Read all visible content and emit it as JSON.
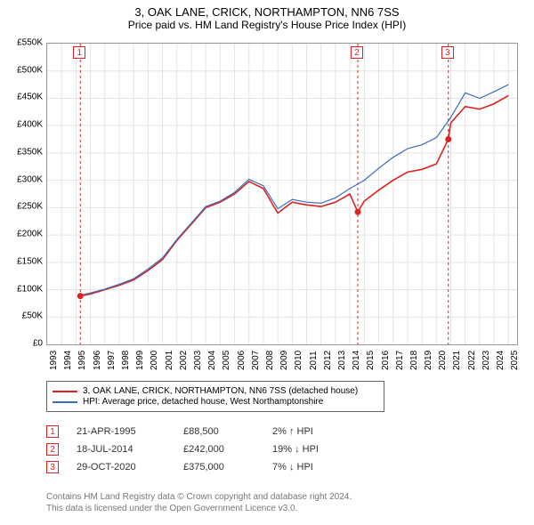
{
  "title": "3, OAK LANE, CRICK, NORTHAMPTON, NN6 7SS",
  "subtitle": "Price paid vs. HM Land Registry's House Price Index (HPI)",
  "chart": {
    "type": "line",
    "background_color": "#ffffff",
    "grid_color": "#e4e4e4",
    "border_color": "#999999",
    "x_years": [
      1993,
      1994,
      1995,
      1996,
      1997,
      1998,
      1999,
      2000,
      2001,
      2002,
      2003,
      2004,
      2005,
      2006,
      2007,
      2008,
      2009,
      2010,
      2011,
      2012,
      2013,
      2014,
      2015,
      2016,
      2017,
      2018,
      2019,
      2020,
      2021,
      2022,
      2023,
      2024,
      2025
    ],
    "xlim": [
      1993,
      2025.6
    ],
    "ylim": [
      0,
      550000
    ],
    "ytick_step": 50000,
    "ytick_labels": [
      "£0",
      "£50K",
      "£100K",
      "£150K",
      "£200K",
      "£250K",
      "£300K",
      "£350K",
      "£400K",
      "£450K",
      "£500K",
      "£550K"
    ],
    "label_fontsize": 10,
    "series": [
      {
        "name": "property",
        "label": "3, OAK LANE, CRICK, NORTHAMPTON, NN6 7SS (detached house)",
        "color": "#dd2222",
        "line_width": 1.6,
        "points": [
          [
            1995.3,
            88500
          ],
          [
            1996,
            92000
          ],
          [
            1997,
            100000
          ],
          [
            1998,
            108000
          ],
          [
            1999,
            118000
          ],
          [
            2000,
            135000
          ],
          [
            2001,
            155000
          ],
          [
            2002,
            190000
          ],
          [
            2003,
            220000
          ],
          [
            2004,
            250000
          ],
          [
            2005,
            260000
          ],
          [
            2006,
            275000
          ],
          [
            2007,
            298000
          ],
          [
            2008,
            285000
          ],
          [
            2009,
            240000
          ],
          [
            2010,
            260000
          ],
          [
            2011,
            255000
          ],
          [
            2012,
            252000
          ],
          [
            2013,
            260000
          ],
          [
            2014,
            275000
          ],
          [
            2014.55,
            242000
          ],
          [
            2015,
            262000
          ],
          [
            2016,
            282000
          ],
          [
            2017,
            300000
          ],
          [
            2018,
            315000
          ],
          [
            2019,
            320000
          ],
          [
            2020,
            330000
          ],
          [
            2020.83,
            375000
          ],
          [
            2021,
            405000
          ],
          [
            2022,
            435000
          ],
          [
            2023,
            430000
          ],
          [
            2024,
            440000
          ],
          [
            2025,
            455000
          ]
        ]
      },
      {
        "name": "hpi",
        "label": "HPI: Average price, detached house, West Northamptonshire",
        "color": "#3a6db8",
        "line_width": 1.2,
        "points": [
          [
            1995.3,
            90000
          ],
          [
            1996,
            94000
          ],
          [
            1997,
            101000
          ],
          [
            1998,
            110000
          ],
          [
            1999,
            120000
          ],
          [
            2000,
            138000
          ],
          [
            2001,
            158000
          ],
          [
            2002,
            192000
          ],
          [
            2003,
            222000
          ],
          [
            2004,
            252000
          ],
          [
            2005,
            262000
          ],
          [
            2006,
            278000
          ],
          [
            2007,
            302000
          ],
          [
            2008,
            290000
          ],
          [
            2009,
            248000
          ],
          [
            2010,
            265000
          ],
          [
            2011,
            260000
          ],
          [
            2012,
            258000
          ],
          [
            2013,
            268000
          ],
          [
            2014,
            285000
          ],
          [
            2015,
            300000
          ],
          [
            2016,
            322000
          ],
          [
            2017,
            342000
          ],
          [
            2018,
            358000
          ],
          [
            2019,
            365000
          ],
          [
            2020,
            378000
          ],
          [
            2021,
            415000
          ],
          [
            2022,
            460000
          ],
          [
            2023,
            450000
          ],
          [
            2024,
            462000
          ],
          [
            2025,
            475000
          ]
        ]
      }
    ],
    "sale_markers": [
      {
        "n": "1",
        "x": 1995.3,
        "y": 88500
      },
      {
        "n": "2",
        "x": 2014.55,
        "y": 242000
      },
      {
        "n": "3",
        "x": 2020.83,
        "y": 375000
      }
    ],
    "marker_dot_color": "#dd2222",
    "marker_dot_radius": 3.5,
    "marker_line_color": "#dd2222",
    "marker_line_dash": "3,3"
  },
  "legend": {
    "items": [
      {
        "color": "#dd2222",
        "label": "3, OAK LANE, CRICK, NORTHAMPTON, NN6 7SS (detached house)"
      },
      {
        "color": "#3a6db8",
        "label": "HPI: Average price, detached house, West Northamptonshire"
      }
    ]
  },
  "events": [
    {
      "n": "1",
      "date": "21-APR-1995",
      "price": "£88,500",
      "pct": "2% ↑ HPI"
    },
    {
      "n": "2",
      "date": "18-JUL-2014",
      "price": "£242,000",
      "pct": "19% ↓ HPI"
    },
    {
      "n": "3",
      "date": "29-OCT-2020",
      "price": "£375,000",
      "pct": "7% ↓ HPI"
    }
  ],
  "footer": {
    "line1": "Contains HM Land Registry data © Crown copyright and database right 2024.",
    "line2": "This data is licensed under the Open Government Licence v3.0."
  }
}
